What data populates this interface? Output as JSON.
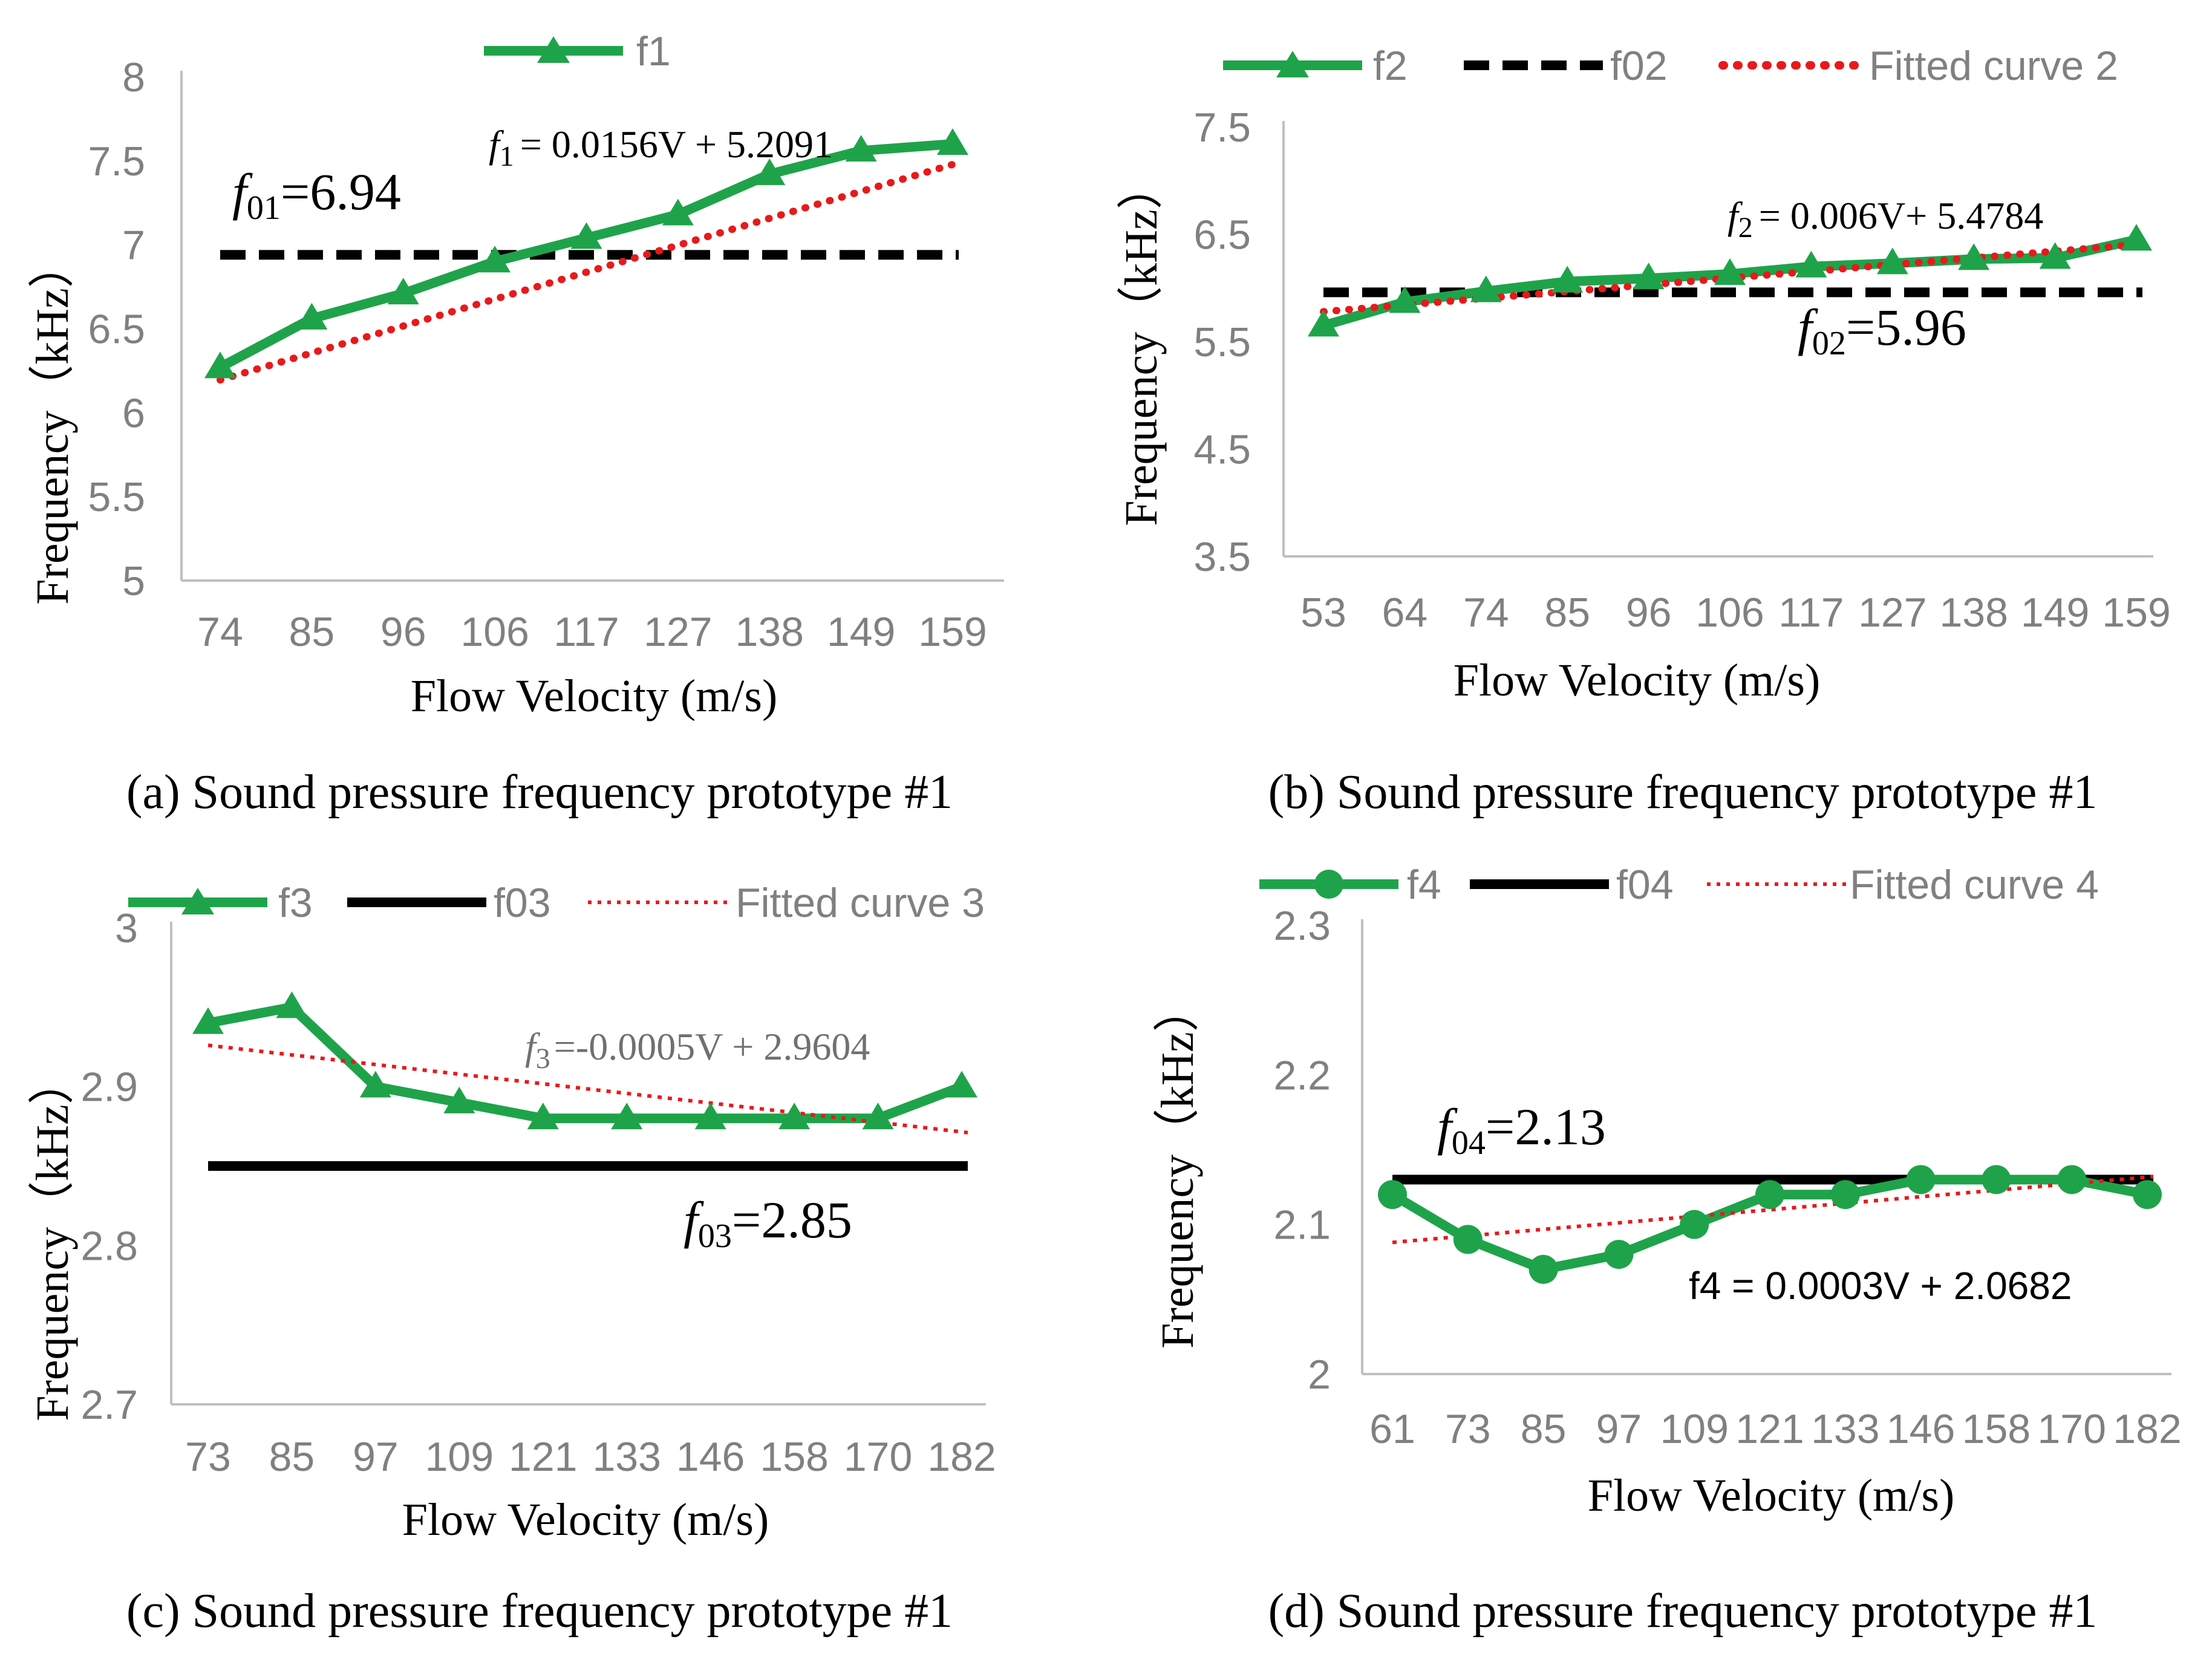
{
  "colors": {
    "series": "#1fa34a",
    "reference": "#000000",
    "fit": "#e8191b",
    "axis": "#bfbfbf",
    "tick_text": "#808080"
  },
  "chart_data": [
    {
      "type": "line",
      "id": "a",
      "caption": "(a) Sound pressure frequency prototype #1",
      "xlabel": "Flow Velocity (m/s)",
      "ylabel": "Frequency（kHz）",
      "categories": [
        "74",
        "85",
        "96",
        "106",
        "117",
        "127",
        "138",
        "149",
        "159"
      ],
      "ylim": [
        5,
        8
      ],
      "yticks": [
        "5",
        "5.5",
        "6",
        "6.5",
        "7",
        "7.5",
        "8"
      ],
      "legend": {
        "position": "top",
        "entries": [
          "f1"
        ]
      },
      "series": [
        {
          "name": "f1",
          "marker": "triangle",
          "values": [
            6.27,
            6.56,
            6.71,
            6.9,
            7.04,
            7.18,
            7.42,
            7.56,
            7.6
          ]
        }
      ],
      "reference": {
        "value": 6.94,
        "style": "dashed",
        "label": "=6.94",
        "label_var": "f",
        "label_sub": "01"
      },
      "fit": {
        "slope_per_category": 0.1617,
        "intercept": 6.195,
        "equation": "= 0.0156V + 5.2091",
        "label_var": "f",
        "label_sub": "1"
      }
    },
    {
      "type": "line",
      "id": "b",
      "caption": "(b) Sound pressure frequency prototype #1",
      "xlabel": "Flow Velocity (m/s)",
      "ylabel": "Frequency（kHz）",
      "categories": [
        "53",
        "64",
        "74",
        "85",
        "96",
        "106",
        "117",
        "127",
        "138",
        "149",
        "159"
      ],
      "ylim": [
        3.5,
        7.5
      ],
      "yticks": [
        "3.5",
        "4.5",
        "5.5",
        "6.5",
        "7.5"
      ],
      "legend": {
        "position": "top",
        "entries": [
          "f2",
          "f02",
          "Fitted curve 2"
        ]
      },
      "series": [
        {
          "name": "f2",
          "marker": "triangle",
          "values": [
            5.65,
            5.87,
            5.97,
            6.06,
            6.09,
            6.13,
            6.2,
            6.23,
            6.27,
            6.28,
            6.45
          ]
        }
      ],
      "reference": {
        "value": 5.96,
        "style": "dashed",
        "name": "f02",
        "label": "=5.96",
        "label_var": "f",
        "label_sub": "02"
      },
      "fit": {
        "name": "Fitted curve 2",
        "slope_per_category": 0.063,
        "intercept": 5.78,
        "equation": "= 0.006V+ 5.4784",
        "label_var": "f",
        "label_sub": "2"
      }
    },
    {
      "type": "line",
      "id": "c",
      "caption": "(c) Sound pressure frequency prototype #1",
      "xlabel": "Flow Velocity (m/s)",
      "ylabel": "Frequency（kHz）",
      "categories": [
        "73",
        "85",
        "97",
        "109",
        "121",
        "133",
        "146",
        "158",
        "170",
        "182"
      ],
      "ylim": [
        2.7,
        3
      ],
      "yticks": [
        "2.7",
        "2.8",
        "2.9",
        "3"
      ],
      "legend": {
        "position": "top",
        "entries": [
          "f3",
          "f03",
          "Fitted curve 3"
        ]
      },
      "series": [
        {
          "name": "f3",
          "marker": "triangle",
          "values": [
            2.94,
            2.95,
            2.9,
            2.89,
            2.88,
            2.88,
            2.88,
            2.88,
            2.88,
            2.9
          ]
        }
      ],
      "reference": {
        "value": 2.85,
        "style": "solid",
        "name": "f03",
        "label": "=2.85",
        "label_var": "f",
        "label_sub": "03"
      },
      "fit": {
        "name": "Fitted curve 3",
        "slope_per_category": -0.00611,
        "intercept": 2.926,
        "equation": "=-0.0005V + 2.9604",
        "label_var": "f",
        "label_sub": "3"
      }
    },
    {
      "type": "line",
      "id": "d",
      "caption": "(d) Sound pressure frequency prototype #1",
      "xlabel": "Flow Velocity (m/s)",
      "ylabel": "Frequency（kHz）",
      "categories": [
        "61",
        "73",
        "85",
        "97",
        "109",
        "121",
        "133",
        "146",
        "158",
        "170",
        "182"
      ],
      "ylim": [
        2,
        2.3
      ],
      "yticks": [
        "2",
        "2.1",
        "2.2",
        "2.3"
      ],
      "legend": {
        "position": "top",
        "entries": [
          "f4",
          "f04",
          "Fitted curve 4"
        ]
      },
      "series": [
        {
          "name": "f4",
          "marker": "circle",
          "values": [
            2.12,
            2.09,
            2.07,
            2.08,
            2.1,
            2.12,
            2.12,
            2.13,
            2.13,
            2.13,
            2.12
          ]
        }
      ],
      "reference": {
        "value": 2.13,
        "style": "solid",
        "name": "f04",
        "label": "=2.13",
        "label_var": "f",
        "label_sub": "04"
      },
      "fit": {
        "name": "Fitted curve 4",
        "slope_per_category": 0.0044,
        "intercept": 2.088,
        "equation": "f4 = 0.0003V + 2.0682"
      }
    }
  ]
}
